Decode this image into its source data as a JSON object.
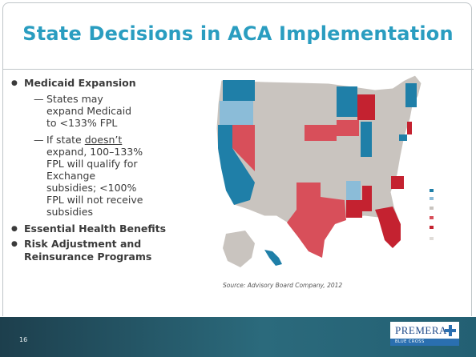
{
  "title": "State Decisions in ACA Implementation",
  "bullets": [
    {
      "text": "Medicaid Expansion",
      "subitems": [
        {
          "parts": [
            "States may expand Medicaid to <133% FPL"
          ]
        },
        {
          "parts": [
            "If state ",
            "doesn’t",
            " expand, 100–133% FPL will qualify for Exchange subsidies; <100% FPL will not receive subsidies"
          ]
        }
      ]
    },
    {
      "text": "Essential Health Benefits"
    },
    {
      "text": "Risk Adjustment and Reinsurance Programs"
    }
  ],
  "source": "Source:  Advisory Board Company, 2012",
  "footer": {
    "page": "16",
    "logo": "PREMERA",
    "logo_sub": "BLUE CROSS"
  }
}
